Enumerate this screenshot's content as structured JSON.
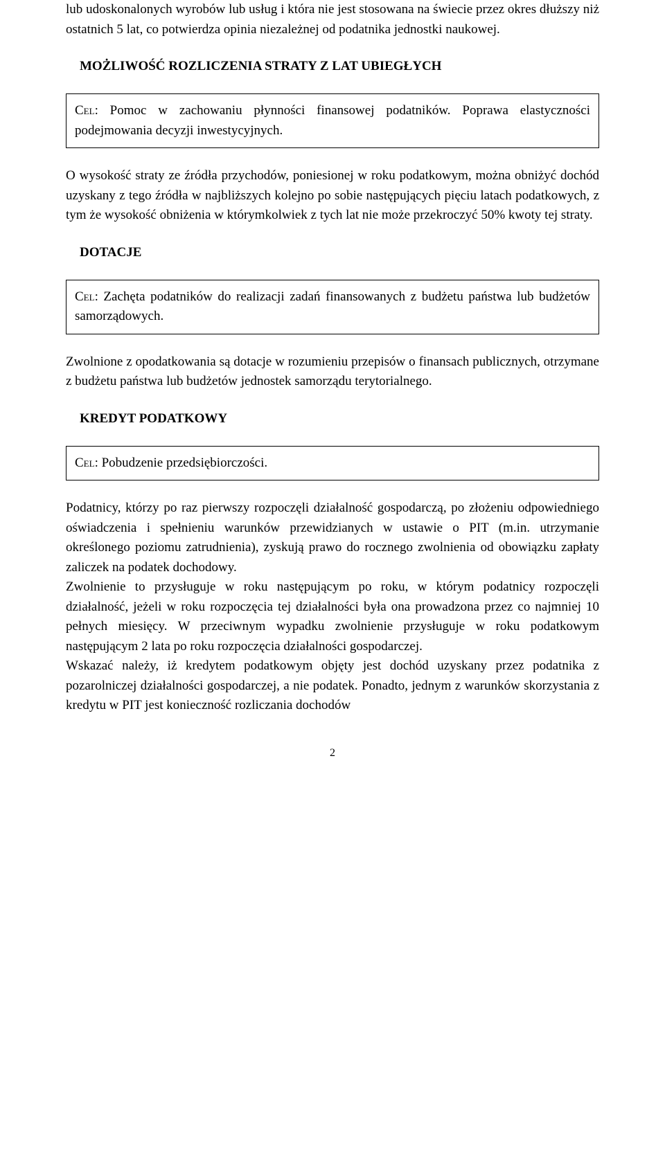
{
  "intro_paragraph": "lub udoskonalonych wyrobów lub usług i która nie jest stosowana na świecie przez okres dłuższy niż ostatnich 5 lat, co potwierdza opinia niezależnej od podatnika jednostki naukowej.",
  "section1": {
    "heading": "MOŻLIWOŚĆ ROZLICZENIA STRATY Z LAT UBIEGŁYCH",
    "cel_label": "Cel",
    "cel_text": ": Pomoc w zachowaniu płynności finansowej podatników. Poprawa elastyczności podejmowania decyzji inwestycyjnych.",
    "body": "O wysokość straty ze źródła przychodów, poniesionej w roku podatkowym, można obniżyć dochód uzyskany z tego źródła w najbliższych kolejno po sobie następujących pięciu latach podatkowych, z tym że wysokość obniżenia w którymkolwiek z tych lat nie może przekroczyć 50% kwoty tej straty."
  },
  "section2": {
    "heading": "DOTACJE",
    "cel_label": "Cel",
    "cel_text": ": Zachęta podatników do realizacji zadań finansowanych z budżetu państwa lub budżetów samorządowych.",
    "body": "Zwolnione z opodatkowania są dotacje w rozumieniu przepisów o finansach publicznych, otrzymane z budżetu państwa lub budżetów jednostek samorządu terytorialnego."
  },
  "section3": {
    "heading": "KREDYT PODATKOWY",
    "cel_label": "Cel",
    "cel_text": ": Pobudzenie przedsiębiorczości.",
    "body1": "Podatnicy, którzy po raz pierwszy rozpoczęli działalność gospodarczą, po złożeniu odpowiedniego oświadczenia i spełnieniu warunków przewidzianych w ustawie o PIT (m.in. utrzymanie określonego poziomu zatrudnienia), zyskują prawo do rocznego zwolnienia od obowiązku zapłaty zaliczek na podatek dochodowy.",
    "body2": "Zwolnienie to przysługuje w roku następującym po roku, w którym podatnicy rozpoczęli działalność, jeżeli w roku rozpoczęcia tej działalności była ona prowadzona przez  co najmniej 10 pełnych miesięcy. W przeciwnym wypadku zwolnienie przysługuje w roku podatkowym następującym 2 lata po roku rozpoczęcia działalności gospodarczej.",
    "body3": "Wskazać należy, iż kredytem podatkowym objęty jest dochód uzyskany przez podatnika z pozarolniczej działalności gospodarczej, a nie podatek. Ponadto, jednym z warunków skorzystania z kredytu w PIT jest konieczność rozliczania dochodów"
  },
  "page_number": "2"
}
